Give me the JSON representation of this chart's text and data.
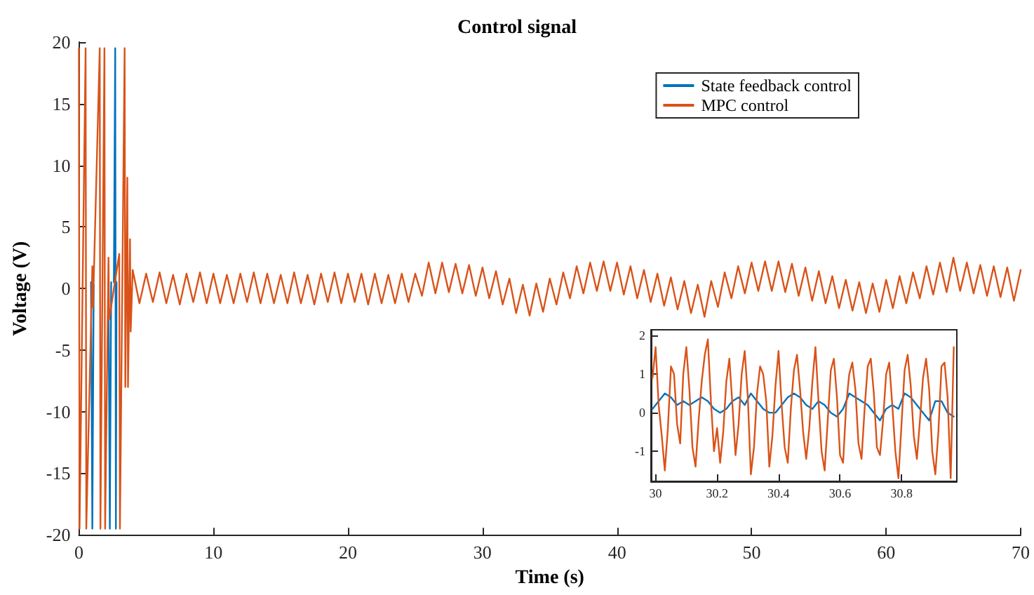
{
  "chart_data": [
    {
      "type": "line",
      "title": "Control signal",
      "xlabel": "Time (s)",
      "ylabel": "Voltage (V)",
      "xlim": [
        0,
        70
      ],
      "xticks": [
        0,
        10,
        20,
        30,
        40,
        50,
        60,
        70
      ],
      "ylim": [
        -20,
        20
      ],
      "yticks": [
        -20,
        -15,
        -10,
        -5,
        0,
        5,
        10,
        15,
        20
      ],
      "grid": false,
      "legend": "top right",
      "marker": "none",
      "line_style": "solid",
      "series": [
        {
          "name": "State feedback control",
          "color": "#0072bd",
          "x": [
            0.9,
            1.0,
            1.1,
            1.5,
            2.2,
            2.3,
            2.4,
            2.5,
            2.6,
            2.7,
            2.75,
            2.8
          ],
          "values": [
            0.5,
            -19.5,
            0.3,
            null,
            0.5,
            -19.5,
            0.5,
            null,
            0.5,
            19.5,
            -19.5,
            0.5
          ]
        },
        {
          "name": "MPC control",
          "color": "#d95319",
          "x": [
            0,
            0.05,
            0.5,
            0.55,
            1.0,
            1.05,
            1.55,
            1.6,
            1.9,
            1.95,
            2.2,
            2.25,
            3.0,
            3.05,
            3.4,
            3.45,
            3.6,
            3.65,
            3.8,
            3.85,
            4.0,
            4.5,
            5,
            5.5,
            6,
            6.5,
            7,
            7.5,
            8,
            8.5,
            9,
            9.5,
            10,
            10.5,
            11,
            11.5,
            12,
            12.5,
            13,
            13.5,
            14,
            14.5,
            15,
            15.5,
            16,
            16.5,
            17,
            17.5,
            18,
            18.5,
            19,
            19.5,
            20,
            20.5,
            21,
            21.5,
            22,
            22.5,
            23,
            23.5,
            24,
            24.5,
            25,
            25.5,
            26,
            26.5,
            27,
            27.5,
            28,
            28.5,
            29,
            29.5,
            30,
            30.5,
            31,
            31.5,
            32,
            32.5,
            33,
            33.5,
            34,
            34.5,
            35,
            35.5,
            36,
            36.5,
            37,
            37.5,
            38,
            38.5,
            39,
            39.5,
            40,
            40.5,
            41,
            41.5,
            42,
            42.5,
            43,
            43.5,
            44,
            44.5,
            45,
            45.5,
            46,
            46.5,
            47,
            47.5,
            48,
            48.5,
            49,
            49.5,
            50,
            50.5,
            51,
            51.5,
            52,
            52.5,
            53,
            53.5,
            54,
            54.5,
            55,
            55.5,
            56,
            56.5,
            57,
            57.5,
            58,
            58.5,
            59,
            59.5,
            60,
            60.5,
            61,
            61.5,
            62,
            62.5,
            63,
            63.5,
            64,
            64.5,
            65,
            65.5,
            66,
            66.5,
            67,
            67.5,
            68,
            68.5,
            69,
            69.5,
            70
          ],
          "values": [
            19.5,
            -19.5,
            19.5,
            -19.5,
            1.8,
            -1.5,
            19.5,
            -19.5,
            19.5,
            -19.5,
            2.5,
            -2.5,
            2.8,
            -19.5,
            19.5,
            -8,
            9,
            -8,
            4,
            -3.5,
            1.5,
            -1.2,
            1.2,
            -1.1,
            1.3,
            -1.2,
            1.1,
            -1.3,
            1.2,
            -1.1,
            1.3,
            -1.2,
            1.2,
            -1.2,
            1.1,
            -1.2,
            1.2,
            -1.1,
            1.3,
            -1.2,
            1.2,
            -1.2,
            1.1,
            -1.2,
            1.3,
            -1.2,
            1.1,
            -1.3,
            1.2,
            -1.1,
            1.3,
            -1.2,
            1.2,
            -1.1,
            1.2,
            -1.3,
            1.2,
            -1.2,
            1.1,
            -1.2,
            1.2,
            -1.1,
            1.2,
            -0.6,
            2.1,
            -0.4,
            2.1,
            -0.3,
            2.0,
            -0.4,
            1.9,
            -0.6,
            1.7,
            -0.8,
            1.4,
            -1.3,
            0.8,
            -2.0,
            0.3,
            -2.2,
            0.4,
            -1.9,
            0.8,
            -1.3,
            1.3,
            -0.8,
            1.8,
            -0.4,
            2.1,
            -0.2,
            2.2,
            -0.2,
            2.1,
            -0.5,
            1.8,
            -0.8,
            1.5,
            -1.1,
            1.2,
            -1.4,
            0.9,
            -1.7,
            0.6,
            -2.0,
            0.3,
            -2.3,
            0.6,
            -1.5,
            1.3,
            -0.8,
            1.8,
            -0.4,
            2.1,
            -0.2,
            2.2,
            -0.2,
            2.2,
            -0.3,
            2.0,
            -0.6,
            1.7,
            -1.0,
            1.4,
            -1.2,
            1.0,
            -1.6,
            0.7,
            -1.8,
            0.5,
            -2.0,
            0.4,
            -1.9,
            0.7,
            -1.6,
            1.0,
            -1.2,
            1.3,
            -0.8,
            1.8,
            -0.5,
            2.1,
            -0.3,
            2.5,
            -0.2,
            2.1,
            -0.4,
            1.9,
            -0.6,
            1.8,
            -0.7,
            1.7,
            -1.0,
            1.5
          ]
        }
      ]
    },
    {
      "type": "line",
      "xlim": [
        29.985,
        30.98
      ],
      "xticks": [
        30,
        30.2,
        30.4,
        30.6,
        30.8
      ],
      "ylim": [
        -1.78,
        2.15
      ],
      "yticks": [
        -1,
        0,
        1,
        2
      ],
      "grid": false,
      "marker": "none",
      "line_style": "solid",
      "series": [
        {
          "color": "#0072bd",
          "x": [
            29.99,
            30.01,
            30.03,
            30.05,
            30.07,
            30.09,
            30.11,
            30.13,
            30.15,
            30.17,
            30.19,
            30.21,
            30.23,
            30.25,
            30.27,
            30.29,
            30.31,
            30.33,
            30.35,
            30.37,
            30.39,
            30.41,
            30.43,
            30.45,
            30.47,
            30.49,
            30.51,
            30.53,
            30.55,
            30.57,
            30.59,
            30.61,
            30.63,
            30.65,
            30.67,
            30.69,
            30.71,
            30.73,
            30.75,
            30.77,
            30.79,
            30.81,
            30.83,
            30.85,
            30.87,
            30.89,
            30.91,
            30.93,
            30.95,
            30.97
          ],
          "values": [
            0.1,
            0.3,
            0.5,
            0.4,
            0.2,
            0.3,
            0.2,
            0.3,
            0.4,
            0.3,
            0.1,
            0.0,
            0.1,
            0.3,
            0.4,
            0.2,
            0.5,
            0.3,
            0.1,
            0.0,
            0.0,
            0.2,
            0.4,
            0.5,
            0.4,
            0.2,
            0.1,
            0.3,
            0.2,
            0.0,
            -0.1,
            0.1,
            0.5,
            0.4,
            0.3,
            0.2,
            0.0,
            -0.2,
            0.1,
            0.2,
            0.1,
            0.5,
            0.4,
            0.2,
            0.0,
            -0.2,
            0.3,
            0.3,
            0.0,
            -0.1
          ]
        },
        {
          "color": "#d95319",
          "x": [
            29.99,
            30.0,
            30.01,
            30.02,
            30.03,
            30.04,
            30.05,
            30.06,
            30.07,
            30.08,
            30.09,
            30.1,
            30.11,
            30.12,
            30.13,
            30.14,
            30.15,
            30.16,
            30.17,
            30.18,
            30.19,
            30.2,
            30.21,
            30.22,
            30.23,
            30.24,
            30.25,
            30.26,
            30.27,
            30.28,
            30.29,
            30.3,
            30.31,
            30.32,
            30.33,
            30.34,
            30.35,
            30.36,
            30.37,
            30.38,
            30.39,
            30.4,
            30.41,
            30.42,
            30.43,
            30.44,
            30.45,
            30.46,
            30.47,
            30.48,
            30.49,
            30.5,
            30.51,
            30.52,
            30.53,
            30.54,
            30.55,
            30.56,
            30.57,
            30.58,
            30.59,
            30.6,
            30.61,
            30.62,
            30.63,
            30.64,
            30.65,
            30.66,
            30.67,
            30.68,
            30.69,
            30.7,
            30.71,
            30.72,
            30.73,
            30.74,
            30.75,
            30.76,
            30.77,
            30.78,
            30.79,
            30.8,
            30.81,
            30.82,
            30.83,
            30.84,
            30.85,
            30.86,
            30.87,
            30.88,
            30.89,
            30.9,
            30.91,
            30.92,
            30.93,
            30.94,
            30.95,
            30.96,
            30.97
          ],
          "values": [
            0.9,
            1.7,
            0.2,
            -0.6,
            -1.5,
            -0.4,
            1.2,
            1.0,
            -0.3,
            -0.8,
            1.0,
            1.7,
            0.6,
            -0.9,
            -1.4,
            -0.2,
            0.8,
            1.5,
            1.9,
            0.3,
            -1.0,
            -0.4,
            -1.3,
            -0.5,
            0.8,
            1.4,
            0.2,
            -1.1,
            -0.3,
            1.0,
            1.6,
            0.4,
            -1.6,
            -0.9,
            0.5,
            1.2,
            1.0,
            0.3,
            -1.4,
            -0.6,
            0.7,
            1.6,
            0.2,
            -0.9,
            -1.3,
            0.1,
            1.1,
            1.5,
            0.6,
            -0.5,
            -1.2,
            -0.4,
            0.8,
            1.7,
            0.3,
            -1.0,
            -1.5,
            -0.2,
            1.1,
            1.4,
            0.4,
            -1.1,
            -1.3,
            0.2,
            1.0,
            1.3,
            0.6,
            -0.8,
            -1.2,
            0.1,
            1.2,
            1.4,
            0.5,
            -0.9,
            -1.1,
            -0.2,
            1.0,
            1.3,
            0.2,
            -1.0,
            -1.7,
            -0.3,
            1.1,
            1.5,
            0.7,
            -0.6,
            -1.2,
            -0.2,
            0.9,
            1.4,
            0.6,
            -1.0,
            -1.6,
            -0.5,
            1.2,
            1.3,
            0.4,
            -1.7,
            1.7
          ]
        }
      ]
    }
  ]
}
